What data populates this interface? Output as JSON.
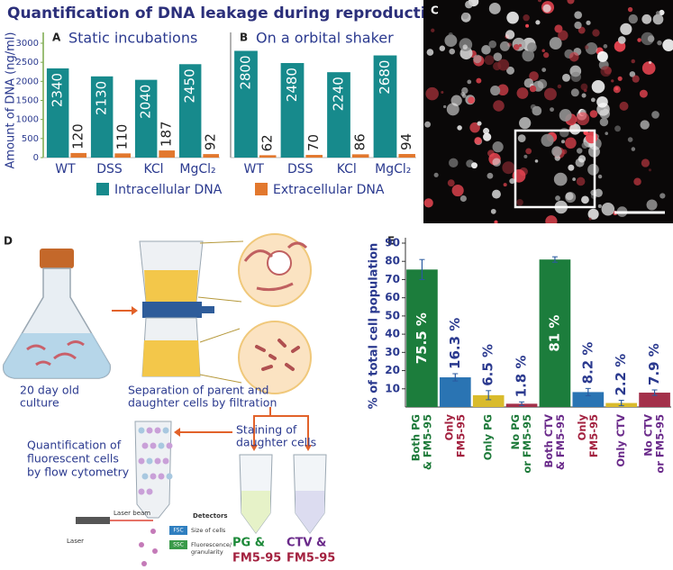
{
  "title": "Quantification of DNA leakage during reproduction",
  "chart_data": [
    {
      "type": "bar",
      "label": "A",
      "title": "Static incubations",
      "y_label": "Amount of DNA (ng/ml)",
      "categories": [
        "WT",
        "DSS",
        "KCl",
        "MgCl₂"
      ],
      "series": [
        {
          "name": "Intracellular DNA",
          "color": "#178a8c",
          "values": [
            2340,
            2130,
            2040,
            2450
          ]
        },
        {
          "name": "Extracellular DNA",
          "color": "#e2782e",
          "values": [
            120,
            110,
            187,
            92
          ]
        }
      ],
      "ylim": [
        0,
        3000
      ],
      "yticks": [
        0,
        500,
        1000,
        1500,
        2000,
        2500,
        3000
      ]
    },
    {
      "type": "bar",
      "label": "B",
      "title": "On a orbital shaker",
      "categories": [
        "WT",
        "DSS",
        "KCl",
        "MgCl₂"
      ],
      "series": [
        {
          "values": [
            2800,
            2480,
            2240,
            2680
          ]
        },
        {
          "values": [
            62,
            70,
            86,
            94
          ]
        }
      ],
      "ylim": [
        0,
        3000
      ]
    },
    {
      "type": "bar",
      "label": "E",
      "y_label": "% of total cell population",
      "categories": [
        [
          "Both PG",
          "& FM5-95"
        ],
        [
          "Only",
          "FM5-95"
        ],
        [
          "Only PG"
        ],
        [
          "No PG",
          "or FM5-95"
        ],
        [
          "Both CTV",
          "& FM5-95"
        ],
        [
          "Only",
          "FM5-95"
        ],
        [
          "Only CTV"
        ],
        [
          "No CTV",
          "or FM5-95"
        ]
      ],
      "category_colors": [
        "#1e7a3a",
        "#a3213f",
        "#1e7a3a",
        "#1e7a3a",
        "#6a2a8a",
        "#a3213f",
        "#6a2a8a",
        "#6a2a8a"
      ],
      "colors": [
        "#1c7d3c",
        "#2a74b3",
        "#d9bb2c",
        "#a3304a",
        "#1c7d3c",
        "#2a74b3",
        "#d9bb2c",
        "#a3304a"
      ],
      "values": [
        75.5,
        16.3,
        6.5,
        1.8,
        81,
        8.2,
        2.2,
        7.9
      ],
      "value_labels": [
        "75.5 %",
        "16.3 %",
        "6.5 %",
        "1.8 %",
        "81 %",
        "8.2 %",
        "2.2 %",
        "7.9 %"
      ],
      "errors": [
        5.5,
        2,
        2.5,
        1,
        1.5,
        2,
        1.5,
        1.5
      ],
      "ylim": [
        0,
        90
      ],
      "yticks": [
        10,
        20,
        30,
        40,
        50,
        60,
        70,
        80,
        90
      ]
    }
  ],
  "panel_c": {
    "label": "C"
  },
  "diagram": {
    "label": "D",
    "culture": [
      "20 day old",
      "culture"
    ],
    "separation": [
      "Separation of parent and",
      "daughter cells by filtration"
    ],
    "staining": [
      "Staining of",
      "daughter cells"
    ],
    "quantification": [
      "Quantification of",
      "fluorescent cells",
      "by flow cytometry"
    ],
    "detectors": "Detectors",
    "laser_beam": "Laser beam",
    "laser": "Laser",
    "fsc": "FSC",
    "fsc_text": "Size of cells",
    "ssc": "SSC",
    "ssc_text": [
      "Fluorescence/",
      "granularity"
    ],
    "tube1": [
      "PG &",
      "FM5-95"
    ],
    "tube2": [
      "CTV &",
      "FM5-95"
    ]
  }
}
